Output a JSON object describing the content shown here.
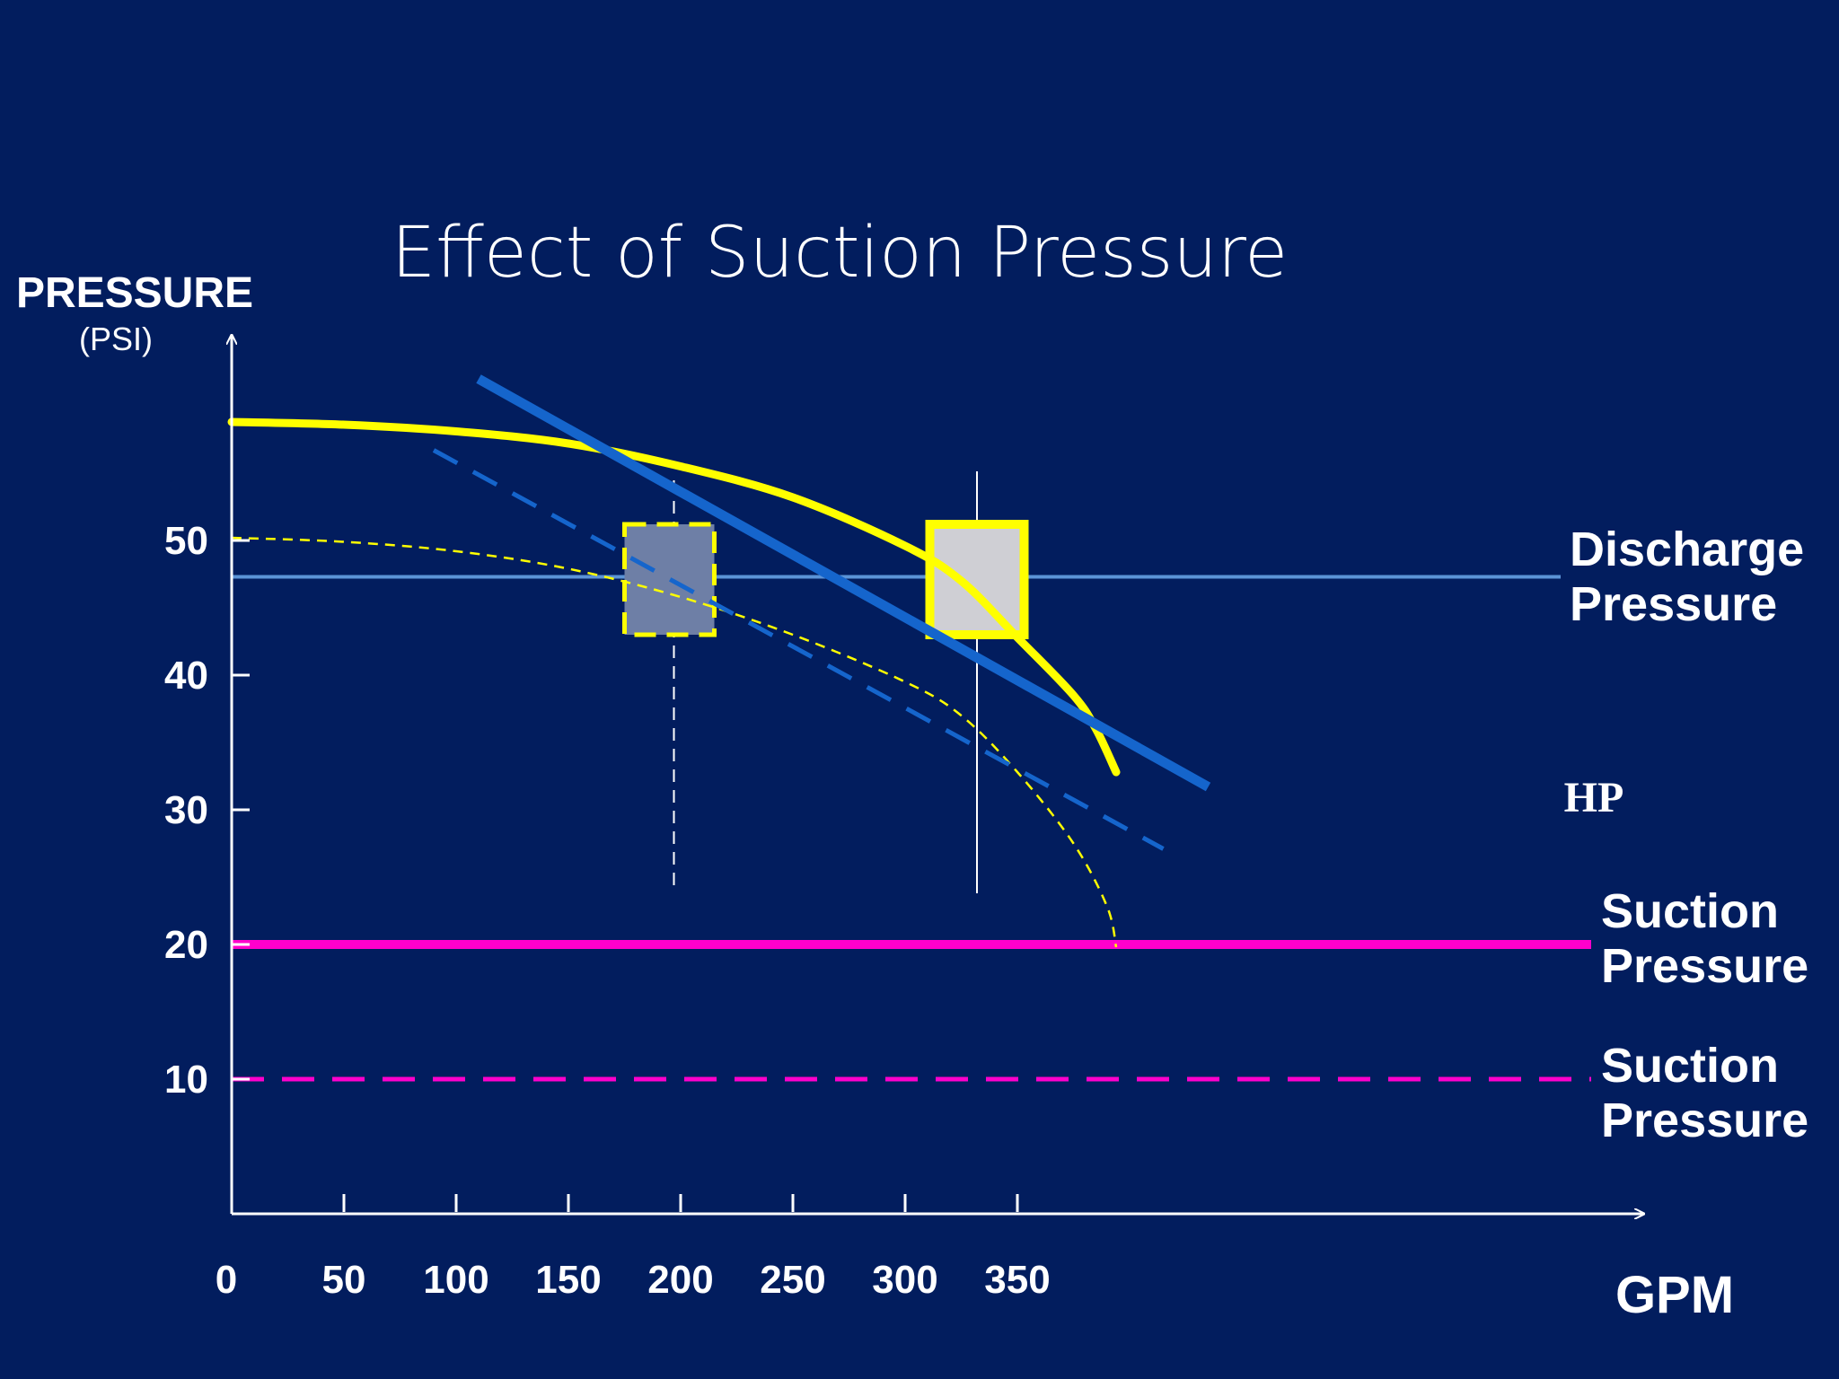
{
  "chart_data": {
    "type": "line",
    "title": "Effect of Suction Pressure",
    "ylabel": "PRESSURE",
    "yunit": "(PSI)",
    "xlabel": "GPM",
    "x_ticks": [
      0,
      50,
      100,
      150,
      200,
      250,
      300,
      350
    ],
    "y_ticks": [
      10,
      20,
      30,
      40,
      50
    ],
    "xlim": [
      0,
      410
    ],
    "ylim": [
      0,
      63
    ],
    "grid": false,
    "series": [
      {
        "style": "solid",
        "color": "#ffff00",
        "points": [
          [
            0,
            58.8
          ],
          [
            50,
            58.6
          ],
          [
            100,
            58.1
          ],
          [
            150,
            57.2
          ],
          [
            200,
            55.5
          ],
          [
            250,
            53.2
          ],
          [
            300,
            49.6
          ],
          [
            325,
            47
          ],
          [
            350,
            42.8
          ],
          [
            375,
            38.5
          ],
          [
            385,
            36
          ],
          [
            394,
            32.8
          ]
        ]
      },
      {
        "style": "dashed",
        "color": "#ffff00",
        "points": [
          [
            0,
            50.2
          ],
          [
            50,
            49.9
          ],
          [
            100,
            49.2
          ],
          [
            150,
            47.9
          ],
          [
            200,
            45.8
          ],
          [
            250,
            43
          ],
          [
            300,
            39.5
          ],
          [
            325,
            37
          ],
          [
            350,
            32.8
          ],
          [
            375,
            27.5
          ],
          [
            390,
            22.8
          ],
          [
            394,
            19.8
          ]
        ]
      },
      {
        "style": "solid",
        "color": "#1565cc",
        "points": [
          [
            110,
            62
          ],
          [
            435,
            31.7
          ]
        ]
      },
      {
        "style": "dashed",
        "color": "#1565cc",
        "points": [
          [
            90,
            56.7
          ],
          [
            415,
            27.1
          ]
        ]
      }
    ],
    "reference_lines": [
      {
        "name": "Discharge Pressure",
        "label_lines": [
          "Discharge",
          "Pressure"
        ],
        "y": 47.3,
        "color": "#5b93d6",
        "style": "solid"
      },
      {
        "name": "Suction Pressure 20",
        "label_lines": [
          "Suction",
          "Pressure"
        ],
        "y": 20,
        "color": "#ff00cc",
        "style": "solid"
      },
      {
        "name": "Suction Pressure 10",
        "label_lines": [
          "Suction",
          "Pressure"
        ],
        "y": 10,
        "color": "#ff00cc",
        "style": "dashed"
      }
    ],
    "operating_points": [
      {
        "x": 197,
        "y_top": 51.2,
        "y_bottom": 43,
        "x_from": 175,
        "x_to": 215,
        "fill": "#6e7fa6",
        "border": "dashed"
      },
      {
        "x": 332,
        "y_top": 51.2,
        "y_bottom": 43,
        "x_from": 311,
        "x_to": 353,
        "fill": "#cfcfd4",
        "border": "solid"
      }
    ],
    "vertical_markers": [
      {
        "x": 197,
        "style": "dashed"
      },
      {
        "x": 332,
        "style": "solid"
      }
    ],
    "annotations": [
      "HP"
    ],
    "colors": {
      "background": "#021d5e",
      "text": "#ffffff",
      "axis": "#ffffff"
    }
  }
}
